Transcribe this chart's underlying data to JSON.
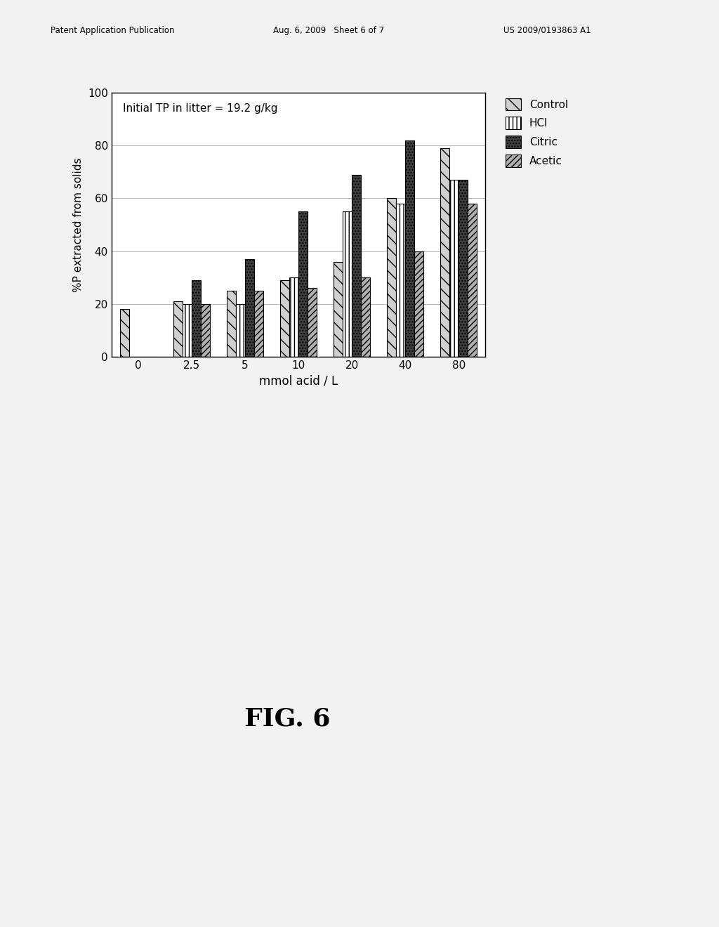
{
  "categories": [
    "0",
    "2.5",
    "5",
    "10",
    "20",
    "40",
    "80"
  ],
  "xlabel": "mmol acid / L",
  "ylabel": "%P extracted from solids",
  "annotation": "Initial TP in litter = 19.2 g/kg",
  "ylim": [
    0,
    100
  ],
  "yticks": [
    0,
    20,
    40,
    60,
    80,
    100
  ],
  "series": {
    "Control": [
      18,
      21,
      25,
      29,
      36,
      60,
      79
    ],
    "HCl": [
      0,
      20,
      20,
      30,
      55,
      58,
      67
    ],
    "Citric": [
      0,
      29,
      37,
      55,
      69,
      82,
      67
    ],
    "Acetic": [
      0,
      20,
      25,
      26,
      30,
      40,
      58
    ]
  },
  "hatches": [
    "\\\\",
    "|||",
    "....",
    "////"
  ],
  "face_colors": [
    "#d0d0d0",
    "#ffffff",
    "#404040",
    "#b0b0b0"
  ],
  "edge_colors": [
    "#000000",
    "#000000",
    "#000000",
    "#000000"
  ],
  "bar_width": 0.17,
  "fig_width": 10.24,
  "fig_height": 13.2,
  "dpi": 100,
  "background_color": "#f2f2f2",
  "chart_bg": "#ffffff",
  "grid": true,
  "header_left": "Patent Application Publication",
  "header_mid": "Aug. 6, 2009   Sheet 6 of 7",
  "header_right": "US 2009/0193863 A1",
  "fig_label": "FIG. 6"
}
